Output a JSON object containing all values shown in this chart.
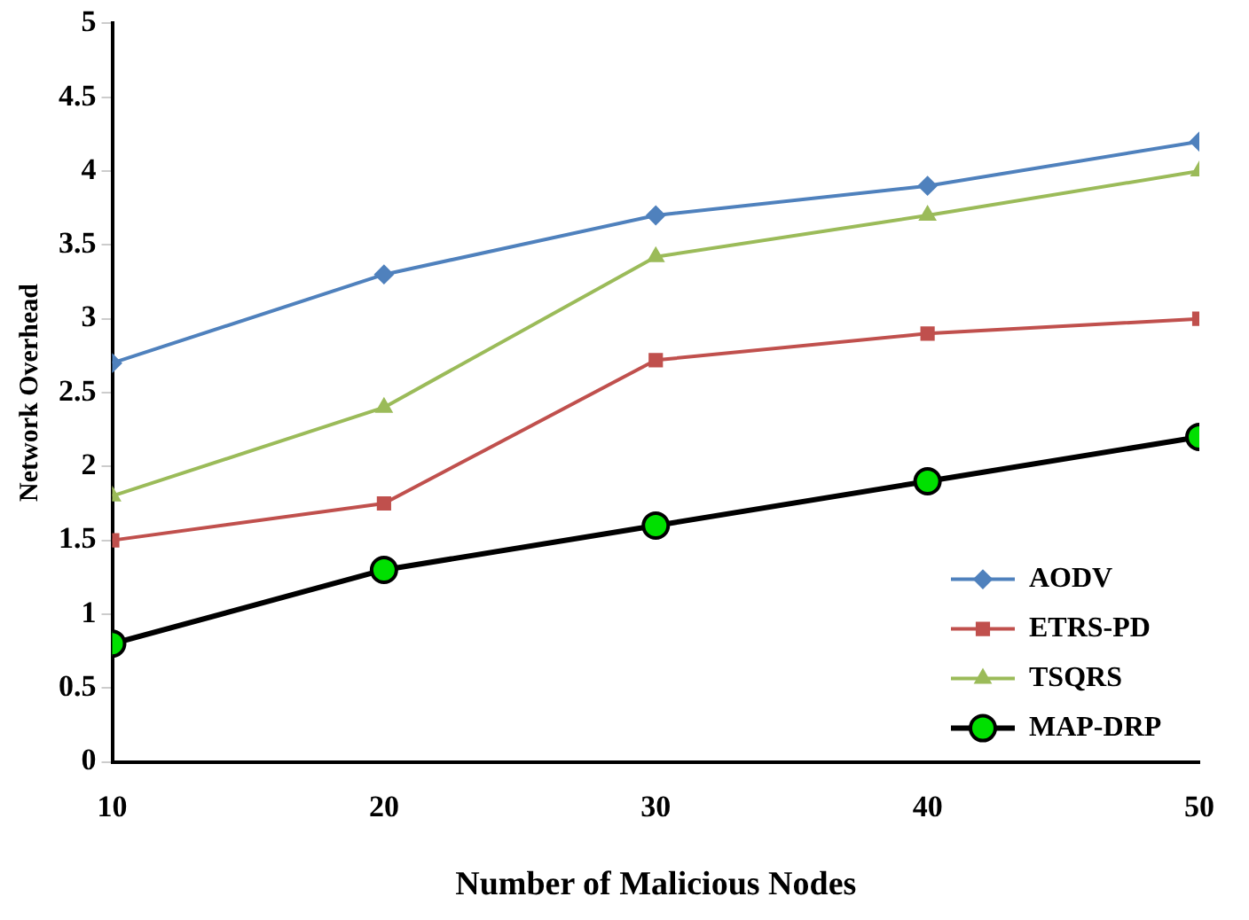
{
  "chart_data": {
    "type": "line",
    "xlabel": "Number of Malicious Nodes",
    "ylabel": "Network Overhead",
    "x": [
      10,
      20,
      30,
      40,
      50
    ],
    "xlim": [
      10,
      50
    ],
    "xticks": [
      10,
      20,
      30,
      40,
      50
    ],
    "ylim": [
      0,
      5
    ],
    "yticks": [
      0,
      0.5,
      1,
      1.5,
      2,
      2.5,
      3,
      3.5,
      4,
      4.5,
      5
    ],
    "grid": false,
    "legend": "bottom right",
    "line_style": "solid",
    "series": [
      {
        "name": "AODV",
        "color": "#4f81bd",
        "marker": "diamond",
        "values": [
          2.7,
          3.3,
          3.7,
          3.9,
          4.2
        ]
      },
      {
        "name": "ETRS-PD",
        "color": "#c0504d",
        "marker": "square",
        "values": [
          1.5,
          1.75,
          2.72,
          2.9,
          3.0
        ]
      },
      {
        "name": "TSQRS",
        "color": "#9bbb59",
        "marker": "triangle",
        "values": [
          1.8,
          2.4,
          3.42,
          3.7,
          4.0
        ]
      },
      {
        "name": "MAP-DRP",
        "color": "#000000",
        "colors": [
          "#00e000",
          "#00e000",
          "#00e000",
          "#00e000",
          "#00e000"
        ],
        "marker": "circle",
        "values": [
          0.8,
          1.3,
          1.6,
          1.9,
          2.2
        ]
      }
    ]
  }
}
